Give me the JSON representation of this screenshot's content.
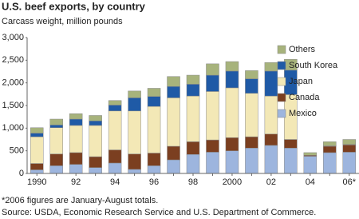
{
  "chart_data": {
    "type": "stacked_bar",
    "title": "U.S. beef exports, by country",
    "subtitle": "Carcass weight, million pounds",
    "categories": [
      "1990",
      null,
      "92",
      null,
      "94",
      null,
      "96",
      null,
      "98",
      null,
      "2000",
      null,
      "02",
      null,
      "04",
      null,
      "06*"
    ],
    "series": [
      {
        "name": "Mexico",
        "color": "#9db5de",
        "values": [
          80,
          170,
          200,
          130,
          230,
          90,
          170,
          300,
          420,
          470,
          500,
          560,
          620,
          560,
          380,
          460,
          470
        ]
      },
      {
        "name": "Canada",
        "color": "#7b3f20",
        "values": [
          140,
          260,
          260,
          240,
          290,
          340,
          280,
          300,
          280,
          270,
          290,
          250,
          250,
          190,
          20,
          140,
          160
        ]
      },
      {
        "name": "Japan",
        "color": "#f3e8b6",
        "values": [
          590,
          580,
          600,
          690,
          860,
          950,
          1030,
          1070,
          1010,
          1070,
          1100,
          960,
          840,
          990,
          0,
          10,
          10
        ]
      },
      {
        "name": "South Korea",
        "color": "#1f5aa6",
        "values": [
          80,
          60,
          140,
          100,
          130,
          290,
          220,
          250,
          260,
          360,
          370,
          320,
          550,
          540,
          0,
          0,
          0
        ]
      },
      {
        "name": "Others",
        "color": "#a7b37c",
        "values": [
          120,
          130,
          120,
          120,
          100,
          150,
          180,
          220,
          200,
          250,
          210,
          180,
          190,
          240,
          60,
          90,
          110
        ]
      }
    ],
    "ylim": [
      0,
      3000
    ],
    "yticks": [
      0,
      500,
      {
        "value": 1000,
        "label": "1,000"
      },
      {
        "value": 1500,
        "label": "1,500"
      },
      {
        "value": 2000,
        "label": "2,000"
      },
      {
        "value": 2500,
        "label": "2,500"
      },
      {
        "value": 3000,
        "label": "3,000"
      }
    ],
    "grid": false,
    "legend": "top-right",
    "footnote": "*2006 figures are January-August totals.",
    "source": "Source:  USDA, Economic Research Service and U.S. Department of Commerce."
  }
}
